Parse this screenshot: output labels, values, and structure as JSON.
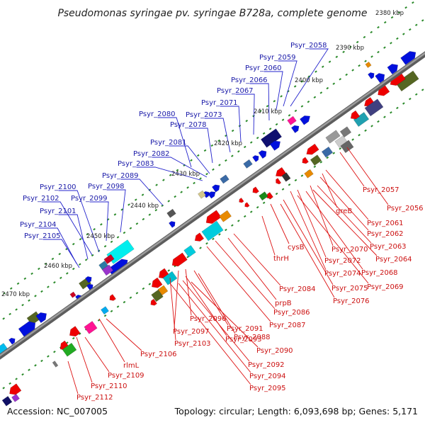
{
  "title": "Pseudomonas syringae pv. syringae B728a, complete genome",
  "accession": "Accession: NC_007005",
  "topology": "Topology: circular; Length: 6,093,698 bp; Genes: 5,171",
  "colors": {
    "forward_label": "#1a1aa8",
    "reverse_label": "#cc1111",
    "tick_mark": "#2a8a2a",
    "backbone": "#8a8a8a"
  },
  "scale_labels": [
    "2380 kbp",
    "2390 kbp",
    "2400 kbp",
    "2410 kbp",
    "2420 kbp",
    "2430 kbp",
    "2440 kbp",
    "2450 kbp",
    "2460 kbp",
    "2470 kbp"
  ],
  "forward_genes": [
    "Psyr_2058",
    "Psyr_2059",
    "Psyr_2060",
    "Psyr_2066",
    "Psyr_2067",
    "Psyr_2071",
    "Psyr_2073",
    "Psyr_2078",
    "Psyr_2080",
    "Psyr_2081",
    "Psyr_2082",
    "Psyr_2083",
    "Psyr_2089",
    "Psyr_2098",
    "Psyr_2099",
    "Psyr_2100",
    "Psyr_2102",
    "Psyr_2101",
    "Psyr_2104",
    "Psyr_2105"
  ],
  "reverse_genes": [
    "Psyr_2057",
    "Psyr_2056",
    "greB",
    "Psyr_2061",
    "Psyr_2062",
    "Psyr_2063",
    "Psyr_2070",
    "Psyr_2064",
    "Psyr_2072",
    "Psyr_2068",
    "cysB",
    "Psyr_2074",
    "Psyr_2069",
    "thrH",
    "Psyr_2075",
    "Psyr_2076",
    "Psyr_2084",
    "prpB",
    "Psyr_2086",
    "Psyr_2087",
    "Psyr_2096",
    "Psyr_2091",
    "Psyr_2097",
    "Psyr_2088",
    "Psyr_2093",
    "Psyr_2103",
    "Psyr_2090",
    "Psyr_2106",
    "rlmL",
    "Psyr_2092",
    "Psyr_2109",
    "Psyr_2094",
    "Psyr_2110",
    "Psyr_2095",
    "Psyr_2112"
  ]
}
